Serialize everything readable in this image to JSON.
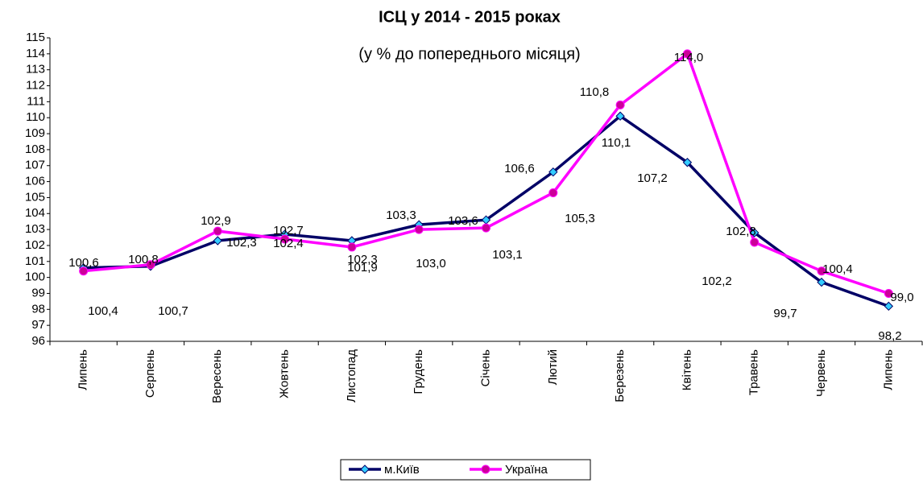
{
  "chart_data": {
    "type": "line",
    "title": "ІСЦ у 2014 - 2015 роках",
    "subtitle": "(у %  до попереднього місяця)",
    "categories": [
      "Липень",
      "Серпень",
      "Вересень",
      "Жовтень",
      "Листопад",
      "Грудень",
      "Січень",
      "Лютий",
      "Березень",
      "Квітень",
      "Травень",
      "Червень",
      "Липень"
    ],
    "series": [
      {
        "name": "м.Київ",
        "color": "#000066",
        "marker": "diamond",
        "marker_color": "#33ccff",
        "values": [
          100.6,
          100.7,
          102.3,
          102.7,
          102.3,
          103.3,
          103.6,
          106.6,
          110.1,
          107.2,
          102.8,
          99.7,
          98.2
        ],
        "value_labels": [
          "100,6",
          "100,7",
          "102,3",
          "102,7",
          "102,3",
          "103,3",
          "103,6",
          "106,6",
          "110,1",
          "107,2",
          "102,8",
          "99,7",
          "98,2"
        ]
      },
      {
        "name": "Україна",
        "color": "#ff00ff",
        "marker": "circle",
        "marker_color": "#cc0099",
        "values": [
          100.4,
          100.8,
          102.9,
          102.4,
          101.9,
          103.0,
          103.1,
          105.3,
          110.8,
          114.0,
          102.2,
          100.4,
          99.0
        ],
        "value_labels": [
          "100,4",
          "100,8",
          "102,9",
          "102,4",
          "101,9",
          "103,0",
          "103,1",
          "105,3",
          "110,8",
          "114,0",
          "102,2",
          "100,4",
          "99,0"
        ]
      }
    ],
    "ylim": [
      96,
      115
    ],
    "yticks": [
      96,
      97,
      98,
      99,
      100,
      101,
      102,
      103,
      104,
      105,
      106,
      107,
      108,
      109,
      110,
      111,
      112,
      113,
      114,
      115
    ],
    "legend": "bottom"
  }
}
